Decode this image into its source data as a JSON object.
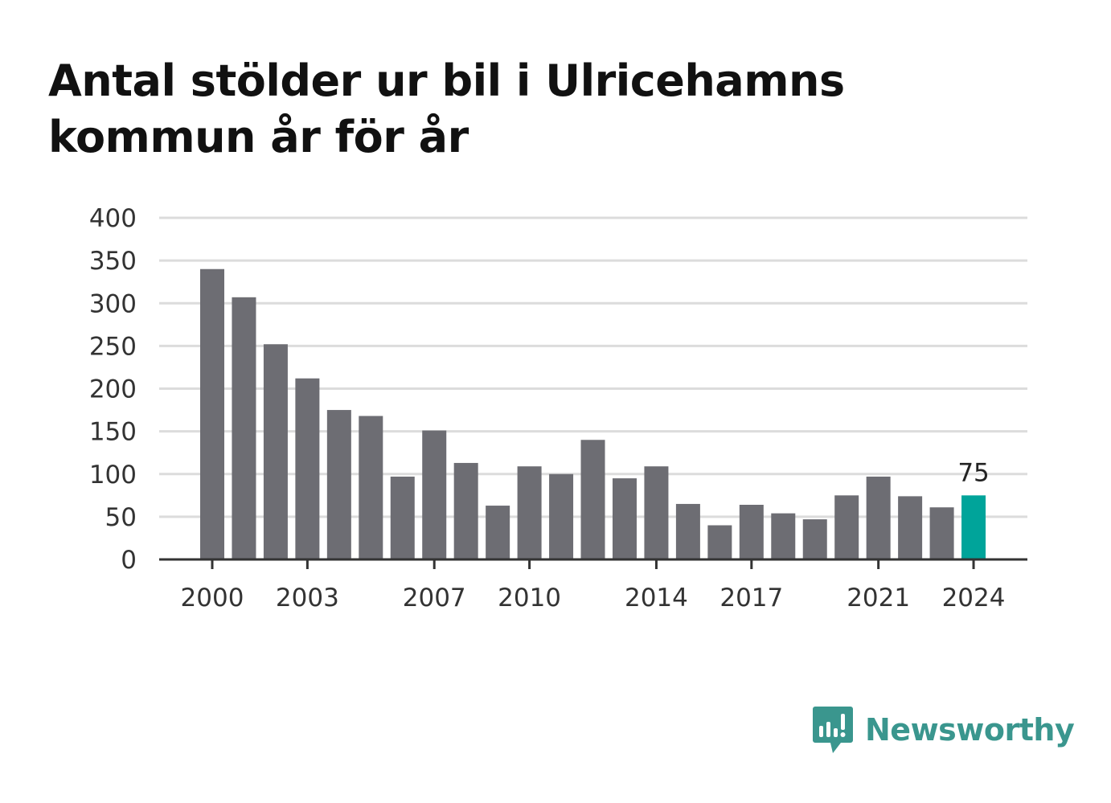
{
  "title": "Antal stölder ur bil i Ulricehamns kommun år för år",
  "brand": {
    "name": "Newsworthy",
    "color": "#3a968e",
    "icon": "newsworthy-logo-icon"
  },
  "colors": {
    "bar": "#6d6d73",
    "highlight": "#00a49a",
    "grid": "#dcdcdc",
    "axis": "#333333"
  },
  "chart_data": {
    "type": "bar",
    "title": "Antal stölder ur bil i Ulricehamns kommun år för år",
    "xlabel": "",
    "ylabel": "",
    "categories": [
      2000,
      2001,
      2002,
      2003,
      2004,
      2005,
      2006,
      2007,
      2008,
      2009,
      2010,
      2011,
      2012,
      2013,
      2014,
      2015,
      2016,
      2017,
      2018,
      2019,
      2020,
      2021,
      2022,
      2023,
      2024
    ],
    "values": [
      340,
      307,
      252,
      212,
      175,
      168,
      97,
      151,
      113,
      63,
      109,
      100,
      140,
      95,
      109,
      65,
      40,
      64,
      54,
      47,
      75,
      97,
      74,
      61,
      75
    ],
    "highlight_index": 24,
    "highlight_label": "75",
    "x_tick_labels": [
      "2000",
      "2003",
      "2007",
      "2010",
      "2014",
      "2017",
      "2021",
      "2024"
    ],
    "y_ticks": [
      0,
      50,
      100,
      150,
      200,
      250,
      300,
      350,
      400
    ],
    "ylim": [
      0,
      400
    ],
    "grid": true
  }
}
